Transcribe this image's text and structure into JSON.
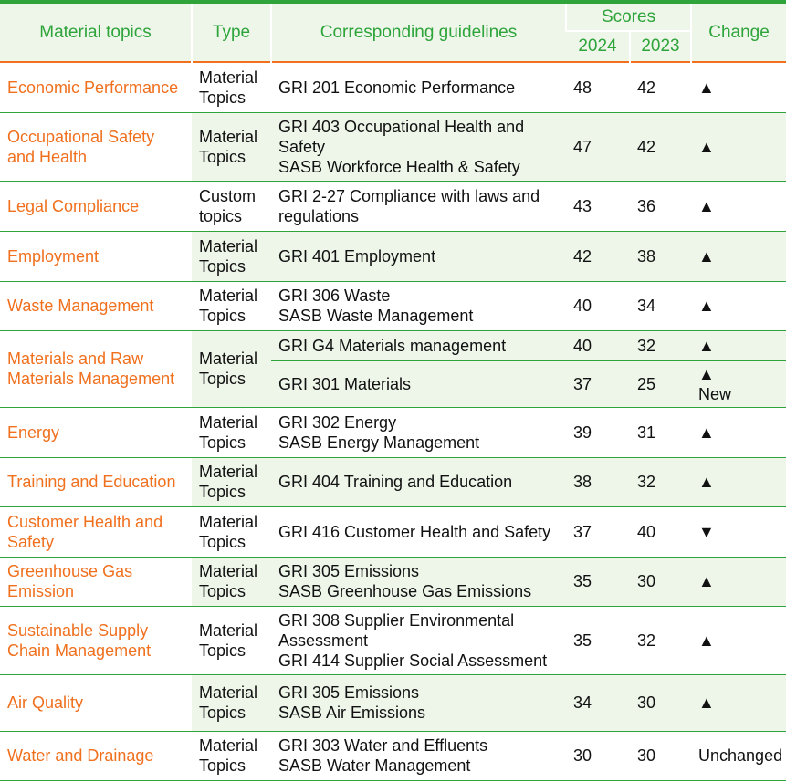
{
  "headers": {
    "topic": "Material topics",
    "type": "Type",
    "guidelines": "Corresponding guidelines",
    "scores": "Scores",
    "y2024": "2024",
    "y2023": "2023",
    "change": "Change"
  },
  "rows": [
    {
      "topic": "Economic Performance",
      "type": "Material Topics",
      "guidelines": [
        "GRI 201 Economic Performance"
      ],
      "s2024": "48",
      "s2023": "42",
      "change": "▲",
      "note": ""
    },
    {
      "topic": "Occupational Safety and Health",
      "type": "Material Topics",
      "guidelines": [
        "GRI 403 Occupational Health and Safety",
        "SASB Workforce Health & Safety"
      ],
      "s2024": "47",
      "s2023": "42",
      "change": "▲",
      "note": ""
    },
    {
      "topic": "Legal Compliance",
      "type": "Custom topics",
      "guidelines": [
        "GRI 2-27 Compliance with laws and regulations"
      ],
      "s2024": "43",
      "s2023": "36",
      "change": "▲",
      "note": ""
    },
    {
      "topic": "Employment",
      "type": "Material Topics",
      "guidelines": [
        "GRI 401 Employment"
      ],
      "s2024": "42",
      "s2023": "38",
      "change": "▲",
      "note": ""
    },
    {
      "topic": "Waste Management",
      "type": "Material Topics",
      "guidelines": [
        "GRI 306 Waste",
        "SASB Waste Management"
      ],
      "s2024": "40",
      "s2023": "34",
      "change": "▲",
      "note": ""
    },
    {
      "topic": "Materials and Raw Materials Management",
      "type": "Material Topics",
      "guidelines": [
        "GRI G4 Materials management"
      ],
      "s2024": "40",
      "s2023": "32",
      "change": "▲",
      "note": ""
    },
    {
      "topic": "",
      "type": "",
      "guidelines": [
        "GRI 301 Materials"
      ],
      "s2024": "37",
      "s2023": "25",
      "change": "▲",
      "note": "New"
    },
    {
      "topic": "Energy",
      "type": "Material Topics",
      "guidelines": [
        "GRI 302 Energy",
        "SASB Energy Management"
      ],
      "s2024": "39",
      "s2023": "31",
      "change": "▲",
      "note": ""
    },
    {
      "topic": "Training and Education",
      "type": "Material Topics",
      "guidelines": [
        "GRI 404 Training and Education"
      ],
      "s2024": "38",
      "s2023": "32",
      "change": "▲",
      "note": ""
    },
    {
      "topic": "Customer Health and Safety",
      "type": "Material Topics",
      "guidelines": [
        "GRI 416 Customer Health and Safety"
      ],
      "s2024": "37",
      "s2023": "40",
      "change": "▼",
      "note": ""
    },
    {
      "topic": "Greenhouse Gas Emission",
      "type": "Material Topics",
      "guidelines": [
        "GRI 305 Emissions",
        "SASB Greenhouse Gas Emissions"
      ],
      "s2024": "35",
      "s2023": "30",
      "change": "▲",
      "note": ""
    },
    {
      "topic": "Sustainable Supply Chain Management",
      "type": "Material Topics",
      "guidelines": [
        "GRI 308 Supplier Environmental Assessment",
        "GRI 414 Supplier Social Assessment"
      ],
      "s2024": "35",
      "s2023": "32",
      "change": "▲",
      "note": ""
    },
    {
      "topic": "Air Quality",
      "type": "Material Topics",
      "guidelines": [
        "GRI 305 Emissions",
        "SASB Air Emissions"
      ],
      "s2024": "34",
      "s2023": "30",
      "change": "▲",
      "note": ""
    },
    {
      "topic": "Water and Drainage",
      "type": "Material Topics",
      "guidelines": [
        "GRI 303 Water and Effluents",
        "SASB Water Management"
      ],
      "s2024": "30",
      "s2023": "30",
      "change": "Unchanged",
      "note": ""
    }
  ]
}
